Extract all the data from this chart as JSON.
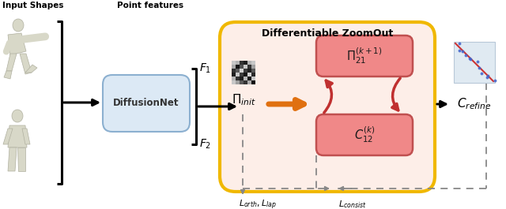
{
  "bg_color": "#ffffff",
  "box_diffusion_color": "#dce9f5",
  "box_diffusion_edge": "#8cb0d0",
  "box_zoomout_bg": "#fdeee8",
  "box_zoomout_border": "#f0b800",
  "box_pink_color": "#f08888",
  "box_pink_border": "#c05050",
  "label_input_shapes": "Input Shapes",
  "label_point_features": "Point features",
  "label_diffusion": "DiffusionNet",
  "label_zoomout": "Differentiable ZoomOut",
  "label_pi_init": "$\\Pi_{init}$",
  "label_pi_21": "$\\Pi_{21}^{(k+1)}$",
  "label_C_12": "$C_{12}^{(k)}$",
  "label_C_refine": "$C_{refine}$",
  "label_F1": "$F_1$",
  "label_F2": "$F_2$",
  "label_L_orth_lap": "$L_{orth}, L_{lap}$",
  "label_L_consist": "$L_{consist}$",
  "human_color": "#d8d8c8",
  "human_edge": "#b0b0a0",
  "arrow_black": "#000000",
  "arrow_orange": "#e07010",
  "arrow_red": "#c03030",
  "arrow_gray": "#888888"
}
